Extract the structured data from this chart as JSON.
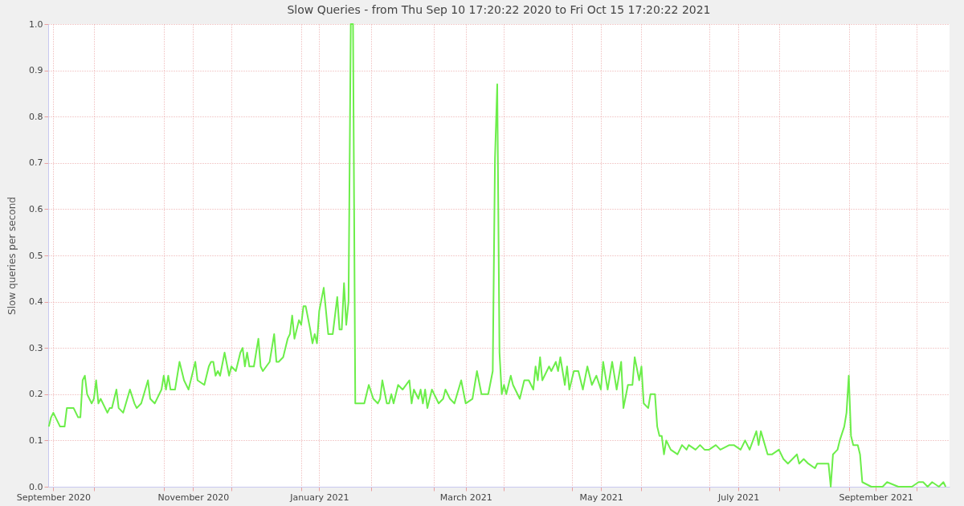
{
  "chart_data": {
    "type": "line",
    "title": "Slow Queries - from Thu Sep 10 17:20:22 2020 to Fri Oct 15 17:20:22 2021",
    "ylabel": "Slow queries per second",
    "x": [
      "2020-09-11",
      "2020-09-12",
      "2020-09-13",
      "2020-09-14",
      "2020-09-15",
      "2020-09-16",
      "2020-09-18",
      "2020-09-19",
      "2020-09-21",
      "2020-09-22",
      "2020-09-24",
      "2020-09-25",
      "2020-09-26",
      "2020-09-27",
      "2020-09-28",
      "2020-09-30",
      "2020-10-01",
      "2020-10-02",
      "2020-10-03",
      "2020-10-04",
      "2020-10-07",
      "2020-10-08",
      "2020-10-09",
      "2020-10-11",
      "2020-10-12",
      "2020-10-14",
      "2020-10-17",
      "2020-10-19",
      "2020-10-20",
      "2020-10-22",
      "2020-10-25",
      "2020-10-26",
      "2020-10-28",
      "2020-10-31",
      "2020-11-01",
      "2020-11-02",
      "2020-11-03",
      "2020-11-04",
      "2020-11-06",
      "2020-11-08",
      "2020-11-10",
      "2020-11-12",
      "2020-11-15",
      "2020-11-16",
      "2020-11-19",
      "2020-11-21",
      "2020-11-22",
      "2020-11-23",
      "2020-11-24",
      "2020-11-25",
      "2020-11-26",
      "2020-11-28",
      "2020-11-30",
      "2020-12-01",
      "2020-12-03",
      "2020-12-05",
      "2020-12-06",
      "2020-12-07",
      "2020-12-08",
      "2020-12-09",
      "2020-12-11",
      "2020-12-13",
      "2020-12-14",
      "2020-12-15",
      "2020-12-18",
      "2020-12-20",
      "2020-12-21",
      "2020-12-22",
      "2020-12-24",
      "2020-12-26",
      "2020-12-27",
      "2020-12-28",
      "2020-12-29",
      "2020-12-31",
      "2021-01-01",
      "2021-01-02",
      "2021-01-03",
      "2021-01-05",
      "2021-01-06",
      "2021-01-07",
      "2021-01-08",
      "2021-01-09",
      "2021-01-11",
      "2021-01-13",
      "2021-01-15",
      "2021-01-17",
      "2021-01-18",
      "2021-01-19",
      "2021-01-20",
      "2021-01-21",
      "2021-01-22",
      "2021-01-23",
      "2021-01-24",
      "2021-01-25",
      "2021-01-27",
      "2021-01-29",
      "2021-01-31",
      "2021-02-02",
      "2021-02-04",
      "2021-02-05",
      "2021-02-06",
      "2021-02-08",
      "2021-02-09",
      "2021-02-10",
      "2021-02-11",
      "2021-02-13",
      "2021-02-15",
      "2021-02-18",
      "2021-02-19",
      "2021-02-20",
      "2021-02-22",
      "2021-02-23",
      "2021-02-24",
      "2021-02-25",
      "2021-02-26",
      "2021-02-28",
      "2021-03-02",
      "2021-03-03",
      "2021-03-05",
      "2021-03-06",
      "2021-03-08",
      "2021-03-10",
      "2021-03-13",
      "2021-03-15",
      "2021-03-18",
      "2021-03-20",
      "2021-03-22",
      "2021-03-25",
      "2021-03-27",
      "2021-03-28",
      "2021-03-29",
      "2021-03-30",
      "2021-03-31",
      "2021-04-01",
      "2021-04-02",
      "2021-04-04",
      "2021-04-05",
      "2021-04-06",
      "2021-04-08",
      "2021-04-10",
      "2021-04-12",
      "2021-04-14",
      "2021-04-15",
      "2021-04-16",
      "2021-04-17",
      "2021-04-18",
      "2021-04-21",
      "2021-04-22",
      "2021-04-24",
      "2021-04-25",
      "2021-04-26",
      "2021-04-28",
      "2021-04-29",
      "2021-04-30",
      "2021-05-02",
      "2021-05-04",
      "2021-05-06",
      "2021-05-08",
      "2021-05-10",
      "2021-05-12",
      "2021-05-14",
      "2021-05-15",
      "2021-05-17",
      "2021-05-19",
      "2021-05-21",
      "2021-05-23",
      "2021-05-24",
      "2021-05-26",
      "2021-05-28",
      "2021-05-29",
      "2021-05-31",
      "2021-06-01",
      "2021-06-02",
      "2021-06-04",
      "2021-06-05",
      "2021-06-07",
      "2021-06-08",
      "2021-06-09",
      "2021-06-10",
      "2021-06-11",
      "2021-06-12",
      "2021-06-14",
      "2021-06-17",
      "2021-06-19",
      "2021-06-21",
      "2021-06-22",
      "2021-06-25",
      "2021-06-27",
      "2021-06-29",
      "2021-07-01",
      "2021-07-04",
      "2021-07-06",
      "2021-07-10",
      "2021-07-12",
      "2021-07-15",
      "2021-07-17",
      "2021-07-19",
      "2021-07-22",
      "2021-07-23",
      "2021-07-24",
      "2021-07-27",
      "2021-07-29",
      "2021-08-01",
      "2021-08-03",
      "2021-08-05",
      "2021-08-09",
      "2021-08-10",
      "2021-08-12",
      "2021-08-14",
      "2021-08-17",
      "2021-08-18",
      "2021-08-21",
      "2021-08-23",
      "2021-08-24",
      "2021-08-25",
      "2021-08-27",
      "2021-08-28",
      "2021-08-30",
      "2021-08-31",
      "2021-09-01",
      "2021-09-02",
      "2021-09-03",
      "2021-09-05",
      "2021-09-06",
      "2021-09-07",
      "2021-09-11",
      "2021-09-16",
      "2021-09-18",
      "2021-09-23",
      "2021-09-26",
      "2021-09-29",
      "2021-10-02",
      "2021-10-04",
      "2021-10-06",
      "2021-10-08",
      "2021-10-11",
      "2021-10-13",
      "2021-10-14"
    ],
    "series": [
      {
        "color": "#6cee4a",
        "values": [
          0.13,
          0.15,
          0.16,
          0.15,
          0.14,
          0.13,
          0.13,
          0.17,
          0.17,
          0.17,
          0.15,
          0.15,
          0.23,
          0.24,
          0.2,
          0.18,
          0.19,
          0.23,
          0.18,
          0.19,
          0.16,
          0.17,
          0.17,
          0.21,
          0.17,
          0.16,
          0.21,
          0.18,
          0.17,
          0.18,
          0.23,
          0.19,
          0.18,
          0.21,
          0.24,
          0.21,
          0.24,
          0.21,
          0.21,
          0.27,
          0.23,
          0.21,
          0.27,
          0.23,
          0.22,
          0.26,
          0.27,
          0.27,
          0.24,
          0.25,
          0.24,
          0.29,
          0.24,
          0.26,
          0.25,
          0.29,
          0.3,
          0.26,
          0.29,
          0.26,
          0.26,
          0.32,
          0.26,
          0.25,
          0.27,
          0.33,
          0.27,
          0.27,
          0.28,
          0.32,
          0.33,
          0.37,
          0.32,
          0.36,
          0.35,
          0.39,
          0.39,
          0.34,
          0.31,
          0.33,
          0.31,
          0.38,
          0.43,
          0.33,
          0.33,
          0.41,
          0.34,
          0.34,
          0.44,
          0.35,
          0.4,
          1.0,
          1.0,
          0.18,
          0.18,
          0.18,
          0.22,
          0.19,
          0.18,
          0.19,
          0.23,
          0.18,
          0.18,
          0.2,
          0.18,
          0.22,
          0.21,
          0.23,
          0.18,
          0.21,
          0.19,
          0.21,
          0.18,
          0.21,
          0.17,
          0.21,
          0.19,
          0.18,
          0.19,
          0.21,
          0.19,
          0.18,
          0.23,
          0.18,
          0.19,
          0.25,
          0.2,
          0.2,
          0.25,
          0.71,
          0.87,
          0.29,
          0.2,
          0.22,
          0.2,
          0.24,
          0.22,
          0.21,
          0.19,
          0.23,
          0.23,
          0.21,
          0.26,
          0.23,
          0.28,
          0.23,
          0.26,
          0.25,
          0.27,
          0.25,
          0.28,
          0.22,
          0.26,
          0.21,
          0.25,
          0.25,
          0.21,
          0.26,
          0.22,
          0.24,
          0.21,
          0.27,
          0.21,
          0.27,
          0.21,
          0.27,
          0.17,
          0.22,
          0.22,
          0.28,
          0.23,
          0.26,
          0.18,
          0.17,
          0.2,
          0.2,
          0.13,
          0.11,
          0.11,
          0.07,
          0.1,
          0.08,
          0.07,
          0.09,
          0.08,
          0.09,
          0.08,
          0.09,
          0.08,
          0.08,
          0.09,
          0.08,
          0.09,
          0.09,
          0.08,
          0.1,
          0.08,
          0.12,
          0.09,
          0.12,
          0.07,
          0.07,
          0.08,
          0.06,
          0.05,
          0.07,
          0.05,
          0.06,
          0.05,
          0.04,
          0.05,
          0.05,
          0.05,
          0.0,
          0.07,
          0.08,
          0.1,
          0.13,
          0.16,
          0.24,
          0.11,
          0.09,
          0.09,
          0.07,
          0.01,
          0.0,
          0.0,
          0.01,
          0.0,
          0.0,
          0.0,
          0.01,
          0.01,
          0.0,
          0.01,
          0.0,
          0.01,
          0.0
        ]
      }
    ],
    "xlim": [
      "2020-09-10T17:20",
      "2021-10-15T17:20"
    ],
    "xticks": [
      {
        "value": "2020-09-13",
        "label": "September 2020"
      },
      {
        "value": "2020-11-14",
        "label": "November 2020"
      },
      {
        "value": "2021-01-09",
        "label": "January 2021"
      },
      {
        "value": "2021-03-15",
        "label": "March 2021"
      },
      {
        "value": "2021-05-14",
        "label": "May 2021"
      },
      {
        "value": "2021-07-14",
        "label": "July 2021"
      },
      {
        "value": "2021-09-13",
        "label": "September 2021"
      },
      {
        "value": "2020-10-01",
        "label": null
      },
      {
        "value": "2020-11-01",
        "label": null
      },
      {
        "value": "2020-12-01",
        "label": null
      },
      {
        "value": "2021-01-01",
        "label": null
      },
      {
        "value": "2021-02-01",
        "label": null
      },
      {
        "value": "2021-03-01",
        "label": null
      },
      {
        "value": "2021-04-01",
        "label": null
      },
      {
        "value": "2021-05-01",
        "label": null
      },
      {
        "value": "2021-06-01",
        "label": null
      },
      {
        "value": "2021-07-01",
        "label": null
      },
      {
        "value": "2021-08-01",
        "label": null
      },
      {
        "value": "2021-09-01",
        "label": null
      },
      {
        "value": "2021-10-01",
        "label": null
      }
    ],
    "ylim": [
      0,
      1
    ],
    "yticks": [
      {
        "value": 0,
        "label": "0.0"
      },
      {
        "value": 0.1,
        "label": "0.1"
      },
      {
        "value": 0.2,
        "label": "0.2"
      },
      {
        "value": 0.3,
        "label": "0.3"
      },
      {
        "value": 0.4,
        "label": "0.4"
      },
      {
        "value": 0.5,
        "label": "0.5"
      },
      {
        "value": 0.6,
        "label": "0.6"
      },
      {
        "value": 0.7,
        "label": "0.7"
      },
      {
        "value": 0.8,
        "label": "0.8"
      },
      {
        "value": 0.9,
        "label": "0.9"
      },
      {
        "value": 1,
        "label": "1.0"
      }
    ],
    "grid": true,
    "marker": "none",
    "line_style": "solid"
  }
}
